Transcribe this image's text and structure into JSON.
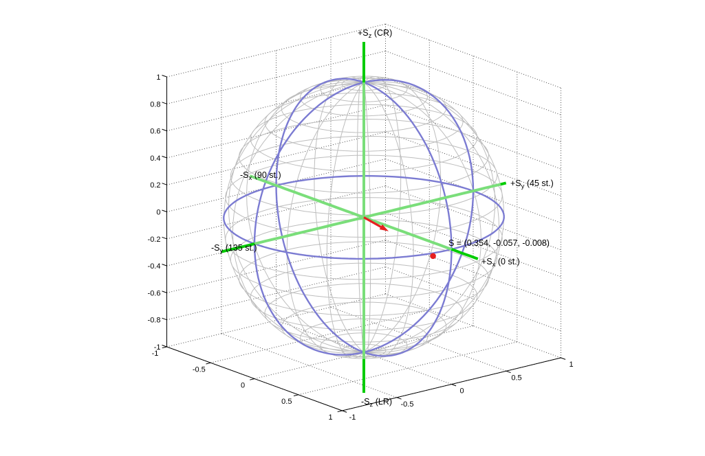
{
  "figure": {
    "background": "#ffffff"
  },
  "colors": {
    "grid": "#4a4a4a",
    "axis": "#000000",
    "text": "#000000",
    "mesh_front": "#8c8c8c",
    "mesh_back": "#bdbdbd",
    "circle_front": "#2121cb",
    "circle_back": "#7b7bd2",
    "axis_line_front": "#00cc00",
    "axis_line_back": "#7ade7a",
    "vector": "#e62020"
  },
  "labels": {
    "plus_sz": {
      "pre": "+S",
      "sub": "z",
      "post": " (CR)"
    },
    "plus_sy": {
      "pre": "+S",
      "sub": "y",
      "post": " (45 st.)"
    },
    "minus_sx": {
      "pre": "-S",
      "sub": "x",
      "post": " (90 st.)"
    },
    "minus_sy": {
      "pre": "-S",
      "sub": "y",
      "post": " (135 st.)"
    },
    "plus_sx": {
      "pre": "+S",
      "sub": "x",
      "post": " (0 st.)"
    },
    "minus_sz": {
      "pre": "-S",
      "sub": "z",
      "post": " (LR)"
    },
    "s_annotation": "S = (0.354, -0.057, -0.008)"
  },
  "chart_data": {
    "type": "3d-poincare-sphere",
    "title": "",
    "grid": true,
    "axis_range": [
      -1,
      1
    ],
    "axis_tick_values": {
      "x": [
        -1,
        -0.5,
        0,
        0.5,
        1
      ],
      "y": [
        -1,
        -0.5,
        0,
        0.5,
        1
      ],
      "z": [
        -1,
        -0.8,
        -0.6,
        -0.4,
        -0.2,
        0,
        0.2,
        0.4,
        0.6,
        0.8,
        1
      ]
    },
    "axis_tick_labels": {
      "x": [
        "-1",
        "-0.5",
        "0",
        "0.5",
        "1"
      ],
      "y": [
        "-1",
        "-0.5",
        "0",
        "0.5",
        "1"
      ],
      "z": [
        "-1",
        "-0.8",
        "-0.6",
        "-0.4",
        "-0.2",
        "0",
        "0.2",
        "0.4",
        "0.6",
        "0.8",
        "1"
      ]
    },
    "stokes_vector": [
      0.354,
      -0.057,
      -0.008
    ],
    "stokes_vector_normalized": [
      0.987,
      -0.159,
      -0.022
    ],
    "axis_lines_extent": 1.3,
    "sphere_mesh": {
      "meridian_step_deg": 18,
      "parallel_step_deg": 9
    },
    "great_circles": [
      "equator S3=0",
      "meridian S1=0",
      "meridian S2=0"
    ],
    "pole_meanings": {
      "plus_sz": "CR",
      "minus_sz": "LR",
      "plus_sx": "0 st.",
      "minus_sx": "90 st.",
      "plus_sy": "45 st.",
      "minus_sy": "135 st."
    }
  }
}
